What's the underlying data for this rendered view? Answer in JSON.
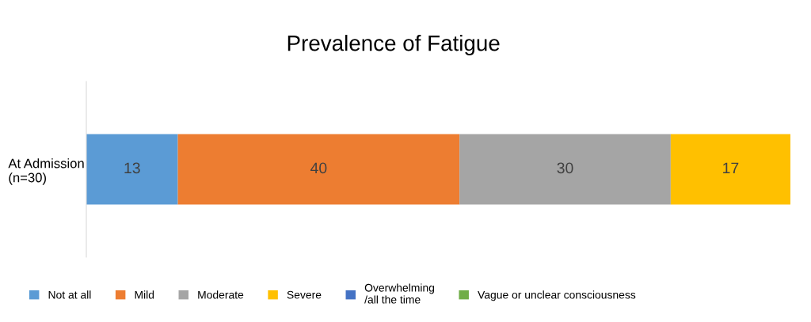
{
  "chart_data": {
    "type": "bar",
    "orientation": "horizontal",
    "stacked": true,
    "title": "Prevalence of Fatigue",
    "categories": [
      "At Admission\n(n=30)"
    ],
    "series": [
      {
        "name": "Not at all",
        "color": "#5b9bd5",
        "values": [
          13
        ],
        "value_labels": [
          "13"
        ]
      },
      {
        "name": "Mild",
        "color": "#ed7d31",
        "values": [
          40
        ],
        "value_labels": [
          "40"
        ]
      },
      {
        "name": "Moderate",
        "color": "#a5a5a5",
        "values": [
          30
        ],
        "value_labels": [
          "30"
        ]
      },
      {
        "name": "Severe",
        "color": "#ffc000",
        "values": [
          17
        ],
        "value_labels": [
          "17"
        ]
      },
      {
        "name": "Overwhelming\n/all the time",
        "color": "#4472c4",
        "values": [
          0
        ],
        "value_labels": [
          null
        ]
      },
      {
        "name": "Vague or unclear consciousness",
        "color": "#70ad47",
        "values": [
          0
        ],
        "value_labels": [
          null
        ]
      }
    ],
    "legend": "bottom",
    "grid": false,
    "tick_labels": "y"
  }
}
